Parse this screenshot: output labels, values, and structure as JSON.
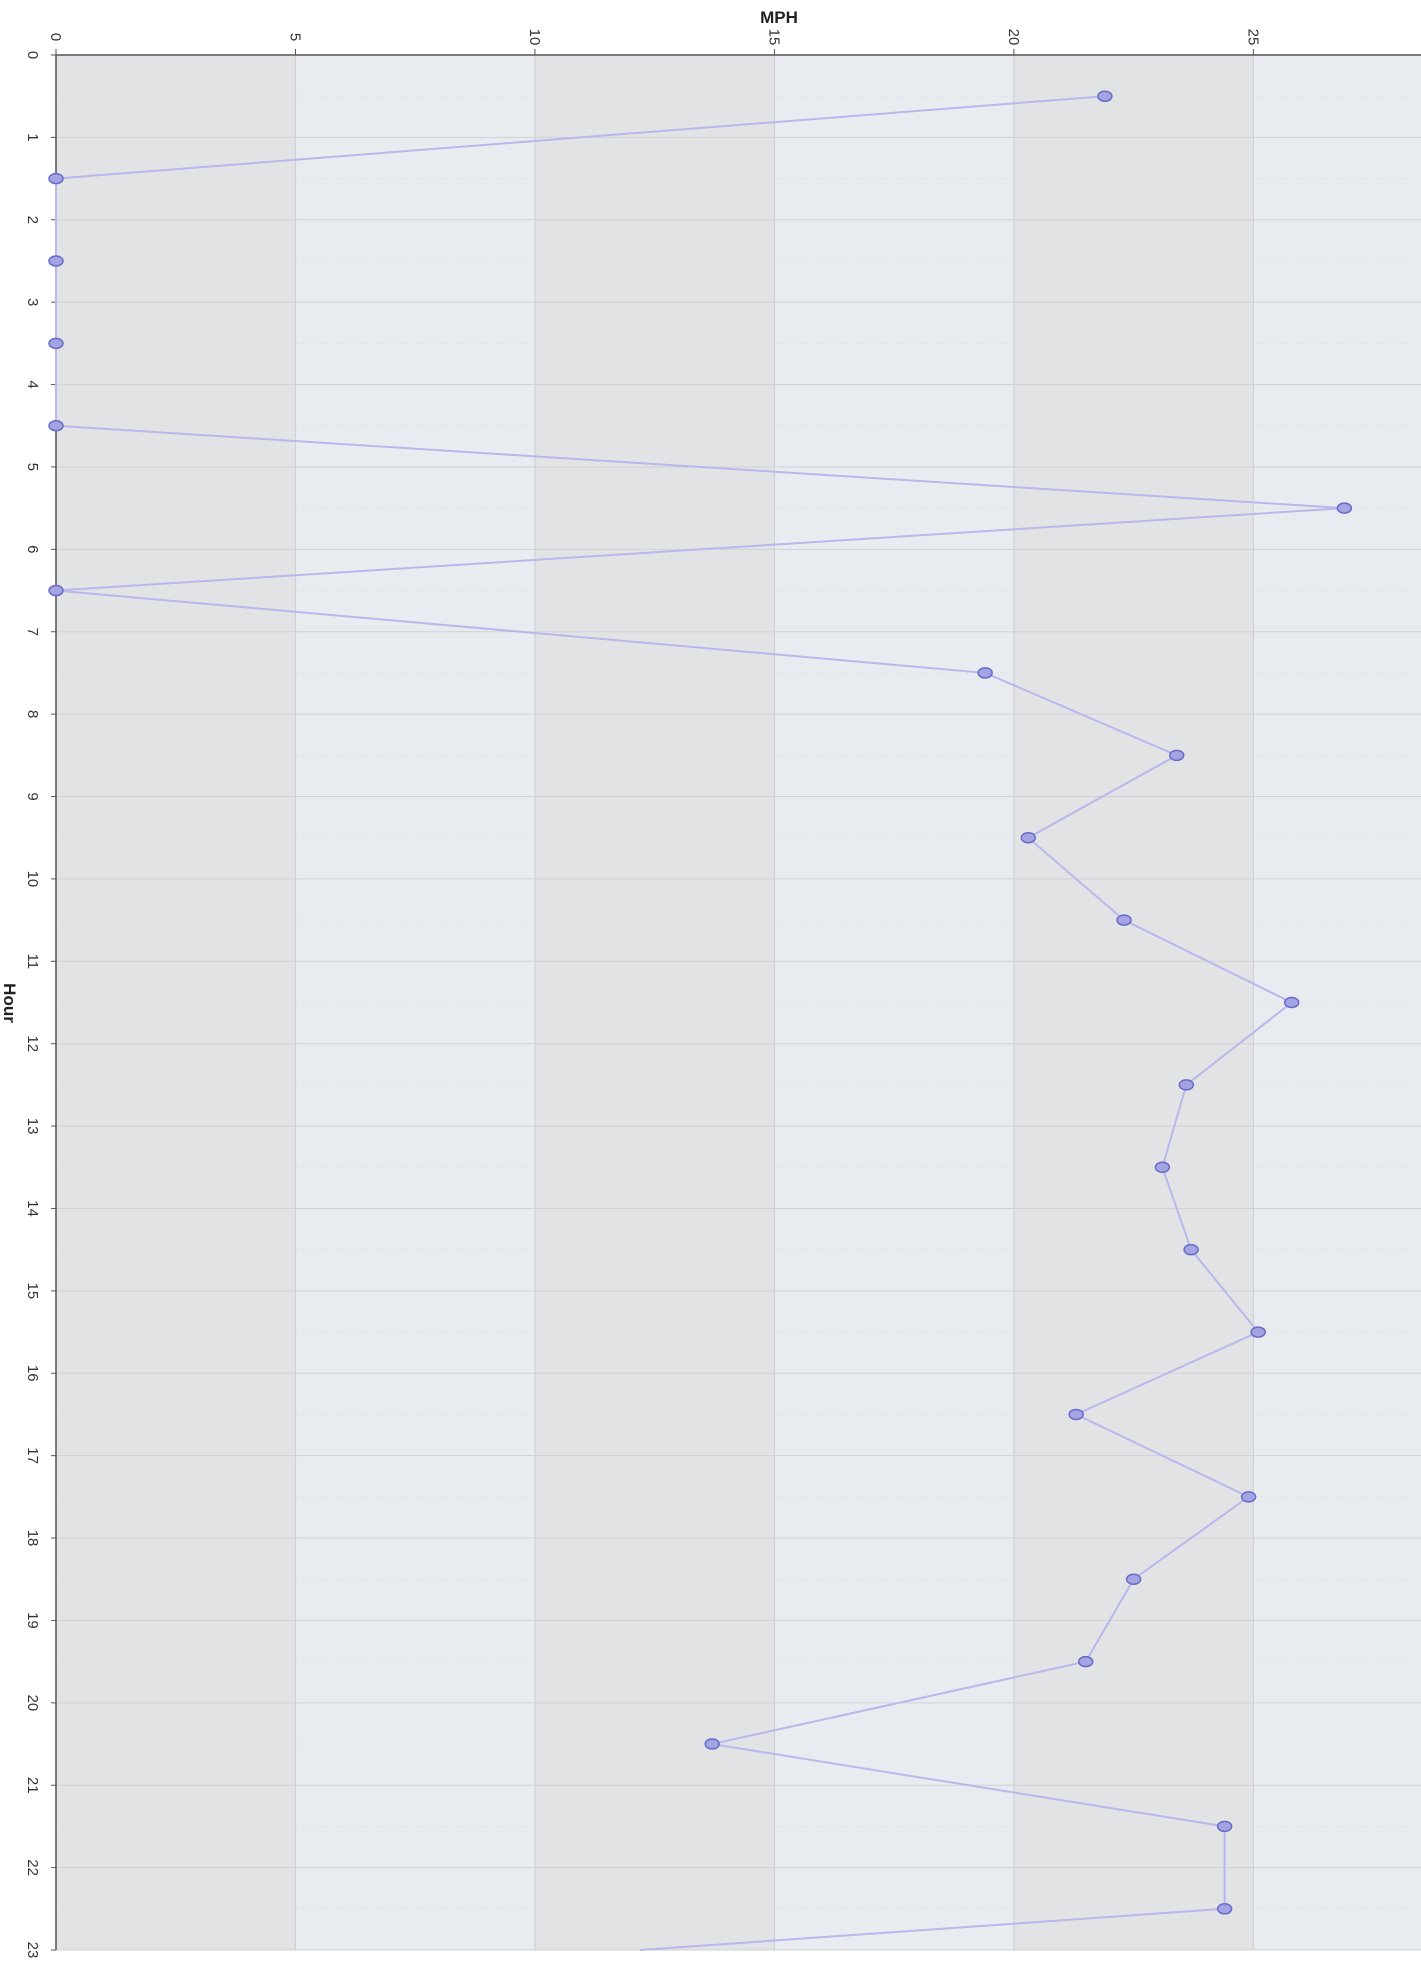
{
  "chart_data": {
    "type": "line",
    "title": "",
    "xlabel": "Hour",
    "ylabel": "MPH",
    "x_ticks": [
      "0",
      "1",
      "2",
      "3",
      "4",
      "5",
      "6",
      "7",
      "8",
      "9",
      "10",
      "11",
      "12",
      "13",
      "14",
      "15",
      "16",
      "17",
      "18",
      "19",
      "20",
      "21",
      "22",
      "23"
    ],
    "y_ticks": [
      "0",
      "5",
      "10",
      "15",
      "20",
      "25"
    ],
    "xlim": [
      0,
      23
    ],
    "ylim": [
      0,
      28.5
    ],
    "grid": true,
    "legend": "none",
    "series": [
      {
        "x": [
          0.5,
          1.5,
          2.5,
          3.5,
          4.5,
          5.5,
          6.5,
          7.5,
          8.5,
          9.5,
          10.5,
          11.5,
          12.5,
          13.5,
          14.5,
          15.5,
          16.5,
          17.5,
          18.5,
          19.5,
          20.5,
          21.5,
          22.5,
          23
        ],
        "y": [
          21.9,
          0,
          0,
          0,
          0,
          26.9,
          0,
          19.4,
          23.4,
          20.3,
          22.3,
          25.8,
          23.6,
          23.1,
          23.7,
          25.1,
          21.3,
          24.9,
          22.5,
          21.5,
          13.7,
          24.4,
          24.4,
          12.2
        ],
        "markers": [
          true,
          true,
          true,
          true,
          true,
          true,
          true,
          true,
          true,
          true,
          true,
          true,
          true,
          true,
          true,
          true,
          true,
          true,
          true,
          true,
          true,
          true,
          true,
          false
        ]
      }
    ],
    "colors": {
      "line": "#b8b8ec",
      "marker_fill": "#a4a4e4",
      "marker_stroke": "#6a6ac8",
      "band_dark": "#e2e3e5",
      "band_light": "#e8ebef",
      "grid_major": "#cfd1d5",
      "grid_minor": "#dcdee1",
      "axis": "#555555"
    }
  }
}
